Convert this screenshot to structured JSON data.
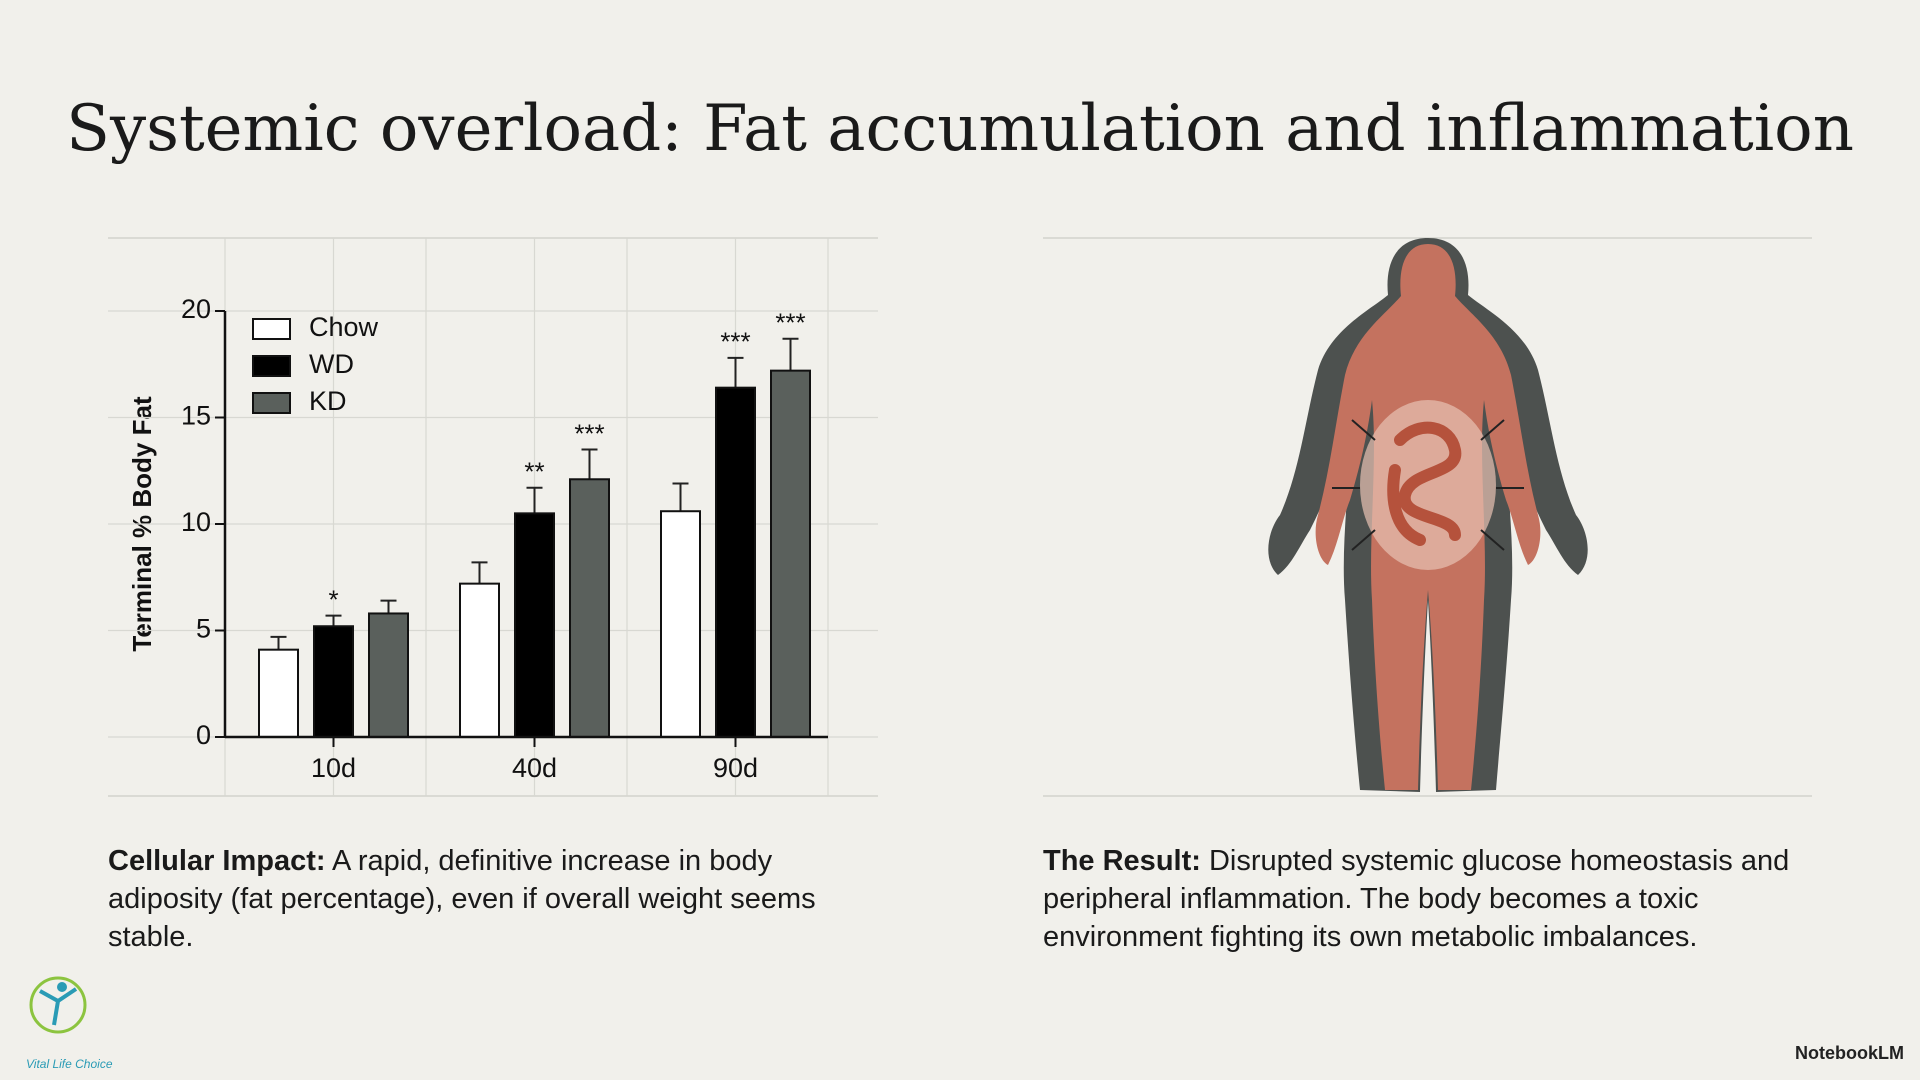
{
  "title": "Systemic overload: Fat accumulation and inflammation",
  "chart_data": {
    "type": "bar",
    "ylabel": "Terminal % Body Fat",
    "categories": [
      "10d",
      "40d",
      "90d"
    ],
    "series": [
      {
        "name": "Chow",
        "color": "#ffffff",
        "values": [
          4.1,
          7.2,
          10.6
        ],
        "errors": [
          0.6,
          1.0,
          1.3
        ],
        "significance": [
          null,
          null,
          null
        ]
      },
      {
        "name": "WD",
        "color": "#000000",
        "values": [
          5.2,
          10.5,
          16.4
        ],
        "errors": [
          0.5,
          1.2,
          1.4
        ],
        "significance": [
          "*",
          "**",
          "***"
        ]
      },
      {
        "name": "KD",
        "color": "#5a605c",
        "values": [
          5.8,
          12.1,
          17.2
        ],
        "errors": [
          0.6,
          1.4,
          1.5
        ],
        "significance": [
          null,
          "***",
          "***"
        ]
      }
    ],
    "ylim": [
      0,
      20
    ],
    "yticks": [
      0,
      5,
      10,
      15,
      20
    ],
    "grid": true
  },
  "captions": [
    {
      "label": "Cellular Impact:",
      "text": "A rapid, definitive increase in body adiposity (fat percentage), even if overall weight seems stable."
    },
    {
      "label": "The Result:",
      "text": "Disrupted systemic glucose homeostasis and peripheral inflammation. The body becomes a toxic environment fighting its own metabolic imbalances."
    }
  ],
  "logo": "Vital Life Choice",
  "brand": "NotebookLM"
}
